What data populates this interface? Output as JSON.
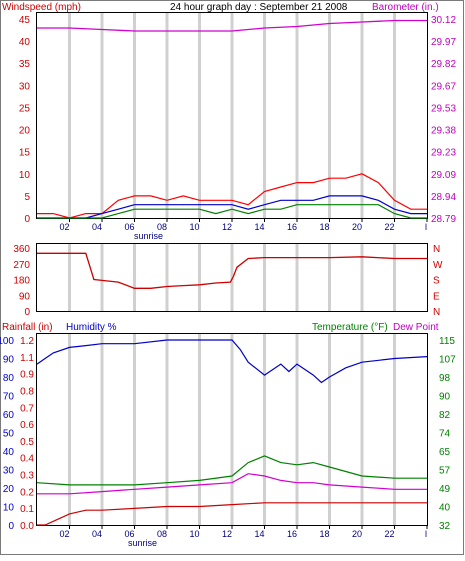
{
  "chart_data": [
    {
      "panel": "top",
      "type": "line",
      "title": "24 hour graph day : September 21 2008",
      "left_axis_label": "Windspeed (mph)",
      "right_axis_label": "Barometer (in.)",
      "x_tick_labels": [
        "02",
        "04",
        "06",
        "08",
        "10",
        "12",
        "14",
        "16",
        "18",
        "20",
        "22",
        "l"
      ],
      "x_note": "sunrise",
      "left_ticks": [
        "45",
        "40",
        "35",
        "30",
        "25",
        "20",
        "15",
        "10",
        "5",
        "0"
      ],
      "right_ticks": [
        "30.12",
        "29.97",
        "29.82",
        "29.67",
        "29.53",
        "29.38",
        "29.23",
        "29.09",
        "28.94",
        "28.79"
      ],
      "left_range": [
        0,
        45
      ],
      "right_range": [
        28.79,
        30.12
      ],
      "grid": "vertical",
      "colors": {
        "left_label": "#d00000",
        "right_label": "#c000c0",
        "wind_gust": "#ff0000",
        "wind_avg": "#0000cc",
        "wind_low": "#008000",
        "barometer": "#d000d0"
      },
      "series": [
        {
          "key": "barometer",
          "axis": "right",
          "x": [
            0,
            2,
            4,
            6,
            8,
            10,
            12,
            13,
            14,
            16,
            18,
            20,
            22,
            24
          ],
          "y": [
            30.06,
            30.06,
            30.05,
            30.04,
            30.04,
            30.04,
            30.04,
            30.05,
            30.06,
            30.07,
            30.09,
            30.1,
            30.11,
            30.11
          ]
        },
        {
          "key": "wind_gust",
          "axis": "left",
          "x": [
            0,
            1,
            2,
            3,
            4,
            5,
            6,
            7,
            8,
            9,
            10,
            11,
            12,
            13,
            14,
            15,
            16,
            17,
            18,
            19,
            20,
            21,
            22,
            23,
            24
          ],
          "y": [
            1,
            1,
            0,
            1,
            1,
            4,
            5,
            5,
            4,
            5,
            4,
            4,
            4,
            3,
            6,
            7,
            8,
            8,
            9,
            9,
            10,
            8,
            4,
            2,
            2
          ]
        },
        {
          "key": "wind_avg",
          "axis": "left",
          "x": [
            0,
            1,
            2,
            3,
            4,
            5,
            6,
            7,
            8,
            9,
            10,
            11,
            12,
            13,
            14,
            15,
            16,
            17,
            18,
            19,
            20,
            21,
            22,
            23,
            24
          ],
          "y": [
            0,
            0,
            0,
            0,
            1,
            2,
            3,
            3,
            3,
            3,
            3,
            3,
            3,
            2,
            3,
            4,
            4,
            4,
            5,
            5,
            5,
            4,
            2,
            1,
            1
          ]
        },
        {
          "key": "wind_low",
          "axis": "left",
          "x": [
            0,
            1,
            2,
            3,
            4,
            5,
            6,
            7,
            8,
            9,
            10,
            11,
            12,
            13,
            14,
            15,
            16,
            17,
            18,
            19,
            20,
            21,
            22,
            23,
            24
          ],
          "y": [
            0,
            0,
            0,
            0,
            0,
            1,
            2,
            2,
            2,
            2,
            2,
            1,
            2,
            1,
            2,
            2,
            3,
            3,
            3,
            3,
            3,
            3,
            1,
            0,
            0
          ]
        }
      ]
    },
    {
      "panel": "middle",
      "type": "line",
      "left_ticks": [
        "360",
        "270",
        "180",
        "90",
        "0"
      ],
      "right_ticks": [
        "N",
        "W",
        "S",
        "E",
        "N"
      ],
      "left_range": [
        0,
        360
      ],
      "colors": {
        "left_label": "#d00000",
        "right_label": "#d00000",
        "wind_direction": "#cc0000"
      },
      "series": [
        {
          "key": "wind_direction",
          "x": [
            0,
            0.3,
            3,
            3.5,
            4,
            5,
            6,
            7,
            8,
            9,
            10,
            11,
            11.9,
            12.1,
            12.3,
            13,
            14,
            16,
            18,
            20,
            22,
            24
          ],
          "y": [
            330,
            330,
            330,
            180,
            175,
            165,
            130,
            130,
            140,
            145,
            150,
            160,
            165,
            200,
            250,
            300,
            305,
            305,
            305,
            310,
            300,
            300
          ]
        }
      ]
    },
    {
      "panel": "bottom",
      "type": "line",
      "left_axis_label_1": "Rainfall (in)",
      "left_axis_label_2": "Humidity %",
      "right_axis_label_1": "Temperature (°F)",
      "right_axis_label_2": "Dew Point",
      "x_tick_labels": [
        "02",
        "04",
        "06",
        "08",
        "10",
        "12",
        "14",
        "16",
        "18",
        "20",
        "22",
        "l"
      ],
      "x_note": "sunrise",
      "humidity_ticks": [
        "100",
        "90",
        "80",
        "70",
        "60",
        "50",
        "40",
        "30",
        "20",
        "10",
        "0"
      ],
      "rain_ticks": [
        "1.2",
        "1.1",
        "0.9",
        "0.8",
        "0.7",
        "0.6",
        "0.5",
        "0.4",
        "0.3",
        "0.2",
        "0.1",
        "0.0"
      ],
      "right_ticks": [
        "115",
        "107",
        "98",
        "90",
        "82",
        "74",
        "65",
        "57",
        "49",
        "40",
        "32"
      ],
      "humidity_range": [
        0,
        100
      ],
      "temperature_range": [
        32,
        115
      ],
      "colors": {
        "rain_label": "#d00000",
        "humidity_label": "#0000cc",
        "temp_label": "#008000",
        "dew_label": "#c000c0",
        "humidity": "#0000cc",
        "temperature": "#008000",
        "dew_point": "#d000d0",
        "rainfall": "#cc0000"
      },
      "series": [
        {
          "key": "humidity",
          "x": [
            0,
            0.5,
            1,
            2,
            3,
            4,
            6,
            8,
            10,
            12,
            12.5,
            13,
            14,
            15,
            15.5,
            16,
            17,
            17.5,
            18,
            19,
            20,
            22,
            24
          ],
          "y": [
            87,
            90,
            93,
            96,
            97,
            98,
            98,
            100,
            100,
            100,
            95,
            88,
            81,
            87,
            83,
            87,
            81,
            77,
            80,
            85,
            88,
            90,
            91
          ]
        },
        {
          "key": "temperature",
          "x": [
            0,
            2,
            4,
            6,
            8,
            10,
            12,
            13,
            14,
            15,
            16,
            17,
            18,
            20,
            22,
            24
          ],
          "y": [
            51,
            50,
            50,
            50,
            51,
            52,
            54,
            60,
            63,
            60,
            59,
            60,
            58,
            54,
            53,
            53
          ]
        },
        {
          "key": "dew_point",
          "x": [
            0,
            2,
            4,
            6,
            8,
            10,
            12,
            13,
            14,
            15,
            16,
            17,
            18,
            20,
            22,
            24
          ],
          "y": [
            46,
            46,
            47,
            48,
            49,
            50,
            51,
            55,
            54,
            52,
            51,
            51,
            50,
            49,
            48,
            48
          ]
        },
        {
          "key": "rainfall",
          "x": [
            0,
            0.5,
            1,
            2,
            3,
            4,
            6,
            8,
            10,
            12,
            14,
            16,
            18,
            20,
            22,
            24
          ],
          "y": [
            0,
            0,
            2,
            6,
            8,
            8,
            9,
            10,
            10,
            11,
            12,
            12,
            12,
            12,
            12,
            12
          ]
        }
      ]
    }
  ]
}
